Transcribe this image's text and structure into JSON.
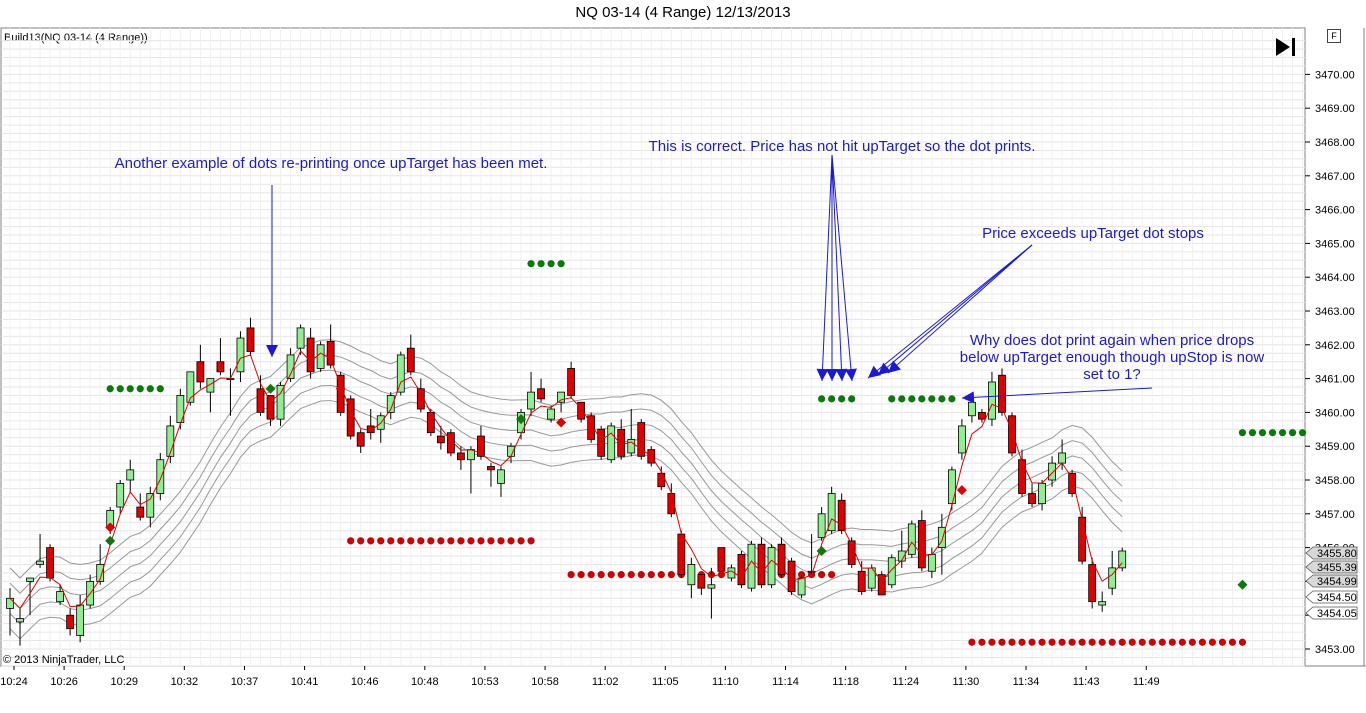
{
  "window": {
    "title": "NQ 03-14 (4 Range)  12/13/2013",
    "indicator_label": "Build13(NQ 03-14 (4 Range))",
    "copyright": "© 2013 NinjaTrader, LLC",
    "f_button": "F"
  },
  "annotations": [
    {
      "text": "Another example of dots re-printing once upTarget has been met."
    },
    {
      "text": "This is correct. Price has not hit upTarget so the dot prints."
    },
    {
      "text": "Price exceeds upTarget dot stops"
    },
    {
      "text": "Why does dot print again when price drops below upTarget enough though upStop is now set to 1?"
    }
  ],
  "chart_data": {
    "type": "candlestick",
    "symbol": "NQ 03-14 (4 Range)",
    "date": "12/13/2013",
    "ylim": [
      3452.5,
      3471.0
    ],
    "y_ticks": [
      "3453.00",
      "3454.00",
      "3455.00",
      "3456.00",
      "3457.00",
      "3458.00",
      "3459.00",
      "3460.00",
      "3461.00",
      "3462.00",
      "3463.00",
      "3464.00",
      "3465.00",
      "3466.00",
      "3467.00",
      "3468.00",
      "3469.00",
      "3470.00"
    ],
    "x_tick_labels": [
      "10:24",
      "10:26",
      "10:29",
      "10:32",
      "10:37",
      "10:41",
      "10:46",
      "10:48",
      "10:53",
      "10:58",
      "11:02",
      "11:05",
      "11:10",
      "11:14",
      "11:18",
      "11:24",
      "11:30",
      "11:34",
      "11:43",
      "11:49"
    ],
    "x_tick_bars": [
      0,
      5,
      11,
      17,
      23,
      29,
      35,
      41,
      47,
      53,
      59,
      65,
      71,
      77,
      83,
      89,
      95,
      101,
      107,
      113
    ],
    "price_labels": [
      "3455.80",
      "3455.39",
      "3454.99",
      "3454.50",
      "3454.05"
    ],
    "colors": {
      "up": "#90ee90",
      "down": "#e00000",
      "up_dot": "#0a7a0a",
      "down_dot": "#d00000",
      "line": "#e00000",
      "bands": "#999999",
      "annotation": "#1a1ad6"
    },
    "candles": [
      {
        "o": 3454.2,
        "h": 3454.8,
        "l": 3453.4,
        "c": 3454.5
      },
      {
        "o": 3453.8,
        "h": 3454.2,
        "l": 3453.1,
        "c": 3453.9
      },
      {
        "o": 3455.0,
        "h": 3455.1,
        "l": 3454.0,
        "c": 3455.1
      },
      {
        "o": 3455.5,
        "h": 3456.4,
        "l": 3455.4,
        "c": 3455.6
      },
      {
        "o": 3456.0,
        "h": 3456.1,
        "l": 3455.0,
        "c": 3455.1
      },
      {
        "o": 3454.4,
        "h": 3454.9,
        "l": 3454.3,
        "c": 3454.7
      },
      {
        "o": 3454.0,
        "h": 3454.2,
        "l": 3453.4,
        "c": 3453.6
      },
      {
        "o": 3453.4,
        "h": 3454.6,
        "l": 3453.2,
        "c": 3454.3
      },
      {
        "o": 3454.3,
        "h": 3455.2,
        "l": 3454.2,
        "c": 3455.0
      },
      {
        "o": 3455.0,
        "h": 3456.1,
        "l": 3454.9,
        "c": 3455.5
      },
      {
        "o": 3456.6,
        "h": 3457.2,
        "l": 3456.4,
        "c": 3457.1
      },
      {
        "o": 3457.2,
        "h": 3458.0,
        "l": 3457.0,
        "c": 3457.9
      },
      {
        "o": 3458.0,
        "h": 3458.6,
        "l": 3457.6,
        "c": 3458.3
      },
      {
        "o": 3457.2,
        "h": 3457.6,
        "l": 3456.8,
        "c": 3456.9
      },
      {
        "o": 3456.9,
        "h": 3457.8,
        "l": 3456.6,
        "c": 3457.6
      },
      {
        "o": 3457.6,
        "h": 3458.8,
        "l": 3457.4,
        "c": 3458.6
      },
      {
        "o": 3458.7,
        "h": 3459.9,
        "l": 3458.5,
        "c": 3459.6
      },
      {
        "o": 3459.7,
        "h": 3460.7,
        "l": 3459.5,
        "c": 3460.5
      },
      {
        "o": 3460.3,
        "h": 3461.2,
        "l": 3460.2,
        "c": 3461.2
      },
      {
        "o": 3461.5,
        "h": 3462.0,
        "l": 3460.7,
        "c": 3460.9
      },
      {
        "o": 3460.6,
        "h": 3461.0,
        "l": 3460.0,
        "c": 3461.0
      },
      {
        "o": 3461.5,
        "h": 3462.2,
        "l": 3461.1,
        "c": 3461.2
      },
      {
        "o": 3461.0,
        "h": 3461.3,
        "l": 3459.9,
        "c": 3461.0
      },
      {
        "o": 3461.2,
        "h": 3462.4,
        "l": 3460.9,
        "c": 3462.2
      },
      {
        "o": 3462.5,
        "h": 3462.8,
        "l": 3461.7,
        "c": 3461.8
      },
      {
        "o": 3460.7,
        "h": 3461.1,
        "l": 3459.9,
        "c": 3460.0
      },
      {
        "o": 3460.5,
        "h": 3460.5,
        "l": 3459.6,
        "c": 3459.8
      },
      {
        "o": 3459.8,
        "h": 3460.9,
        "l": 3459.6,
        "c": 3460.8
      },
      {
        "o": 3461.0,
        "h": 3461.9,
        "l": 3460.9,
        "c": 3461.7
      },
      {
        "o": 3461.9,
        "h": 3462.6,
        "l": 3461.7,
        "c": 3462.5
      },
      {
        "o": 3462.2,
        "h": 3462.5,
        "l": 3461.0,
        "c": 3461.2
      },
      {
        "o": 3461.3,
        "h": 3462.1,
        "l": 3461.2,
        "c": 3462.0
      },
      {
        "o": 3462.1,
        "h": 3462.6,
        "l": 3461.3,
        "c": 3461.4
      },
      {
        "o": 3461.1,
        "h": 3461.2,
        "l": 3459.9,
        "c": 3460.0
      },
      {
        "o": 3460.4,
        "h": 3460.5,
        "l": 3459.2,
        "c": 3459.3
      },
      {
        "o": 3459.4,
        "h": 3459.5,
        "l": 3458.8,
        "c": 3459.0
      },
      {
        "o": 3459.6,
        "h": 3460.1,
        "l": 3459.2,
        "c": 3459.4
      },
      {
        "o": 3459.5,
        "h": 3460.0,
        "l": 3459.1,
        "c": 3459.9
      },
      {
        "o": 3460.0,
        "h": 3460.6,
        "l": 3459.8,
        "c": 3460.5
      },
      {
        "o": 3460.6,
        "h": 3461.8,
        "l": 3460.5,
        "c": 3461.7
      },
      {
        "o": 3461.9,
        "h": 3462.3,
        "l": 3461.1,
        "c": 3461.2
      },
      {
        "o": 3460.7,
        "h": 3461.0,
        "l": 3460.0,
        "c": 3460.1
      },
      {
        "o": 3460.0,
        "h": 3460.1,
        "l": 3459.3,
        "c": 3459.4
      },
      {
        "o": 3459.3,
        "h": 3459.6,
        "l": 3458.9,
        "c": 3459.1
      },
      {
        "o": 3459.4,
        "h": 3459.5,
        "l": 3458.7,
        "c": 3458.8
      },
      {
        "o": 3458.8,
        "h": 3459.0,
        "l": 3458.3,
        "c": 3458.6
      },
      {
        "o": 3458.6,
        "h": 3459.0,
        "l": 3457.6,
        "c": 3458.9
      },
      {
        "o": 3459.3,
        "h": 3459.6,
        "l": 3458.6,
        "c": 3458.7
      },
      {
        "o": 3458.4,
        "h": 3458.5,
        "l": 3457.8,
        "c": 3458.3
      },
      {
        "o": 3457.9,
        "h": 3458.4,
        "l": 3457.5,
        "c": 3458.3
      },
      {
        "o": 3458.7,
        "h": 3459.1,
        "l": 3458.5,
        "c": 3459.0
      },
      {
        "o": 3459.4,
        "h": 3460.1,
        "l": 3459.2,
        "c": 3460.0
      },
      {
        "o": 3460.1,
        "h": 3461.2,
        "l": 3459.9,
        "c": 3460.6
      },
      {
        "o": 3460.7,
        "h": 3461.0,
        "l": 3460.3,
        "c": 3460.4
      },
      {
        "o": 3459.8,
        "h": 3460.2,
        "l": 3459.7,
        "c": 3460.1
      },
      {
        "o": 3460.3,
        "h": 3460.6,
        "l": 3460.0,
        "c": 3460.6
      },
      {
        "o": 3461.3,
        "h": 3461.5,
        "l": 3460.4,
        "c": 3460.5
      },
      {
        "o": 3460.3,
        "h": 3460.3,
        "l": 3459.7,
        "c": 3459.8
      },
      {
        "o": 3459.9,
        "h": 3460.0,
        "l": 3459.1,
        "c": 3459.2
      },
      {
        "o": 3459.5,
        "h": 3459.6,
        "l": 3458.6,
        "c": 3458.7
      },
      {
        "o": 3458.6,
        "h": 3459.7,
        "l": 3458.5,
        "c": 3459.6
      },
      {
        "o": 3459.5,
        "h": 3459.8,
        "l": 3458.6,
        "c": 3458.7
      },
      {
        "o": 3458.8,
        "h": 3460.1,
        "l": 3458.7,
        "c": 3459.2
      },
      {
        "o": 3459.7,
        "h": 3459.8,
        "l": 3458.6,
        "c": 3458.7
      },
      {
        "o": 3458.9,
        "h": 3459.0,
        "l": 3458.4,
        "c": 3458.5
      },
      {
        "o": 3458.2,
        "h": 3458.4,
        "l": 3457.7,
        "c": 3457.8
      },
      {
        "o": 3457.6,
        "h": 3457.9,
        "l": 3456.9,
        "c": 3457.0
      },
      {
        "o": 3456.4,
        "h": 3456.5,
        "l": 3455.1,
        "c": 3455.2
      },
      {
        "o": 3454.9,
        "h": 3455.7,
        "l": 3454.5,
        "c": 3455.5
      },
      {
        "o": 3455.2,
        "h": 3455.2,
        "l": 3454.6,
        "c": 3454.8
      },
      {
        "o": 3454.8,
        "h": 3455.4,
        "l": 3453.9,
        "c": 3454.9
      },
      {
        "o": 3456.0,
        "h": 3456.0,
        "l": 3455.3,
        "c": 3455.3
      },
      {
        "o": 3455.1,
        "h": 3455.5,
        "l": 3455.0,
        "c": 3455.4
      },
      {
        "o": 3455.8,
        "h": 3455.9,
        "l": 3454.8,
        "c": 3454.9
      },
      {
        "o": 3454.8,
        "h": 3456.2,
        "l": 3454.7,
        "c": 3456.1
      },
      {
        "o": 3456.1,
        "h": 3456.3,
        "l": 3454.8,
        "c": 3454.9
      },
      {
        "o": 3454.9,
        "h": 3456.1,
        "l": 3454.8,
        "c": 3456.0
      },
      {
        "o": 3456.1,
        "h": 3456.3,
        "l": 3455.1,
        "c": 3455.2
      },
      {
        "o": 3455.6,
        "h": 3455.7,
        "l": 3454.6,
        "c": 3454.7
      },
      {
        "o": 3454.6,
        "h": 3455.2,
        "l": 3454.5,
        "c": 3455.1
      },
      {
        "o": 3455.3,
        "h": 3456.4,
        "l": 3455.2,
        "c": 3455.3
      },
      {
        "o": 3456.3,
        "h": 3457.2,
        "l": 3456.2,
        "c": 3457.0
      },
      {
        "o": 3456.5,
        "h": 3457.8,
        "l": 3456.4,
        "c": 3457.6
      },
      {
        "o": 3457.4,
        "h": 3457.6,
        "l": 3456.4,
        "c": 3456.5
      },
      {
        "o": 3456.2,
        "h": 3456.3,
        "l": 3455.4,
        "c": 3455.5
      },
      {
        "o": 3455.3,
        "h": 3455.6,
        "l": 3454.6,
        "c": 3454.7
      },
      {
        "o": 3454.8,
        "h": 3455.5,
        "l": 3454.7,
        "c": 3455.4
      },
      {
        "o": 3455.2,
        "h": 3455.3,
        "l": 3454.6,
        "c": 3454.6
      },
      {
        "o": 3454.9,
        "h": 3455.8,
        "l": 3454.8,
        "c": 3455.7
      },
      {
        "o": 3455.6,
        "h": 3456.5,
        "l": 3455.4,
        "c": 3455.9
      },
      {
        "o": 3455.8,
        "h": 3456.8,
        "l": 3455.7,
        "c": 3456.7
      },
      {
        "o": 3456.8,
        "h": 3457.1,
        "l": 3455.3,
        "c": 3455.4
      },
      {
        "o": 3455.3,
        "h": 3456.0,
        "l": 3455.1,
        "c": 3455.8
      },
      {
        "o": 3456.0,
        "h": 3457.0,
        "l": 3455.2,
        "c": 3456.6
      },
      {
        "o": 3457.3,
        "h": 3458.4,
        "l": 3457.1,
        "c": 3458.3
      },
      {
        "o": 3458.8,
        "h": 3459.8,
        "l": 3458.6,
        "c": 3459.6
      },
      {
        "o": 3459.9,
        "h": 3460.4,
        "l": 3459.7,
        "c": 3460.3
      },
      {
        "o": 3460.0,
        "h": 3460.1,
        "l": 3459.7,
        "c": 3459.8
      },
      {
        "o": 3459.8,
        "h": 3461.2,
        "l": 3459.6,
        "c": 3460.9
      },
      {
        "o": 3461.1,
        "h": 3461.3,
        "l": 3459.9,
        "c": 3460.0
      },
      {
        "o": 3459.9,
        "h": 3460.0,
        "l": 3458.7,
        "c": 3458.8
      },
      {
        "o": 3458.6,
        "h": 3458.9,
        "l": 3457.5,
        "c": 3457.6
      },
      {
        "o": 3457.6,
        "h": 3457.9,
        "l": 3457.2,
        "c": 3457.3
      },
      {
        "o": 3457.3,
        "h": 3458.0,
        "l": 3457.1,
        "c": 3457.9
      },
      {
        "o": 3458.0,
        "h": 3458.7,
        "l": 3457.8,
        "c": 3458.5
      },
      {
        "o": 3458.5,
        "h": 3459.2,
        "l": 3458.3,
        "c": 3458.8
      },
      {
        "o": 3458.2,
        "h": 3458.3,
        "l": 3457.5,
        "c": 3457.6
      },
      {
        "o": 3456.9,
        "h": 3457.2,
        "l": 3455.5,
        "c": 3455.6
      },
      {
        "o": 3455.5,
        "h": 3455.7,
        "l": 3454.2,
        "c": 3454.4
      },
      {
        "o": 3454.3,
        "h": 3454.7,
        "l": 3454.1,
        "c": 3454.4
      },
      {
        "o": 3454.8,
        "h": 3455.9,
        "l": 3454.6,
        "c": 3455.4
      },
      {
        "o": 3455.4,
        "h": 3456.0,
        "l": 3455.3,
        "c": 3455.9
      }
    ],
    "up_target_dots": [
      {
        "price": 3460.7,
        "from": 10,
        "to": 15
      },
      {
        "price": 3464.4,
        "from": 52,
        "to": 55
      },
      {
        "price": 3460.4,
        "from": 81,
        "to": 84
      },
      {
        "price": 3460.4,
        "from": 88,
        "to": 94
      },
      {
        "price": 3459.4,
        "from": 123,
        "to": 129
      }
    ],
    "down_target_dots": [
      {
        "price": 3456.2,
        "from": 34,
        "to": 52
      },
      {
        "price": 3455.2,
        "from": 56,
        "to": 82
      },
      {
        "price": 3453.2,
        "from": 96,
        "to": 123
      }
    ]
  }
}
